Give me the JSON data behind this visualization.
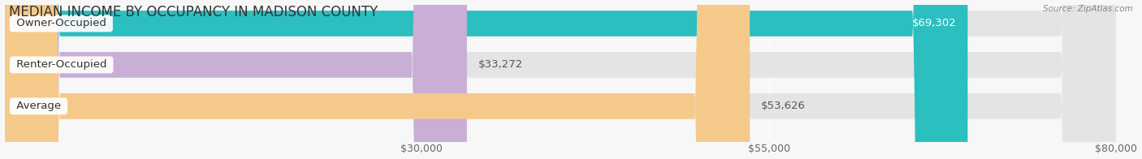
{
  "title": "MEDIAN INCOME BY OCCUPANCY IN MADISON COUNTY",
  "source": "Source: ZipAtlas.com",
  "categories": [
    "Owner-Occupied",
    "Renter-Occupied",
    "Average"
  ],
  "values": [
    69302,
    33272,
    53626
  ],
  "bar_colors": [
    "#2bbfc0",
    "#c9aed6",
    "#f5c98a"
  ],
  "value_labels": [
    "$69,302",
    "$33,272",
    "$53,626"
  ],
  "value_inside": [
    true,
    false,
    false
  ],
  "xmin": 0,
  "xmax": 80000,
  "xticks": [
    30000,
    55000,
    80000
  ],
  "xtick_labels": [
    "$30,000",
    "$55,000",
    "$80,000"
  ],
  "bg_color": "#f7f7f7",
  "bar_bg_color": "#e4e4e4",
  "bar_row_bg": "#efefef",
  "title_fontsize": 12,
  "tick_fontsize": 9,
  "label_fontsize": 9.5,
  "value_fontsize": 9.5,
  "bar_height": 0.62,
  "bar_gap": 0.15
}
